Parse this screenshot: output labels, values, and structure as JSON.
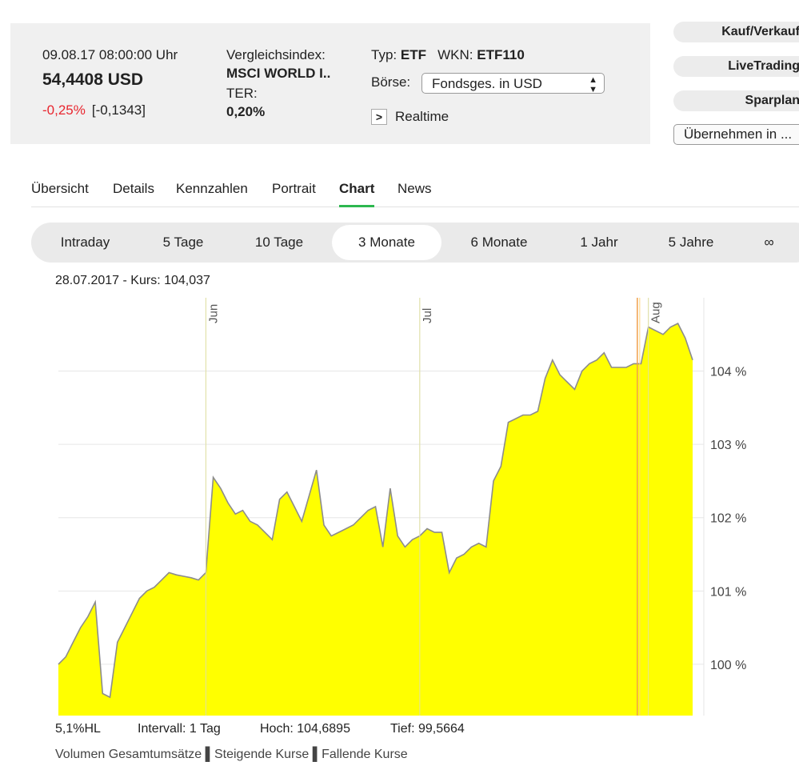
{
  "quote": {
    "datetime": "09.08.17  08:00:00 Uhr",
    "price": "54,4408 USD",
    "change_pct": "-0,25%",
    "change_abs": "[-0,1343]",
    "index_label": "Vergleichsindex:",
    "index_value": "MSCI WORLD I..",
    "ter_label": "TER:",
    "ter_value": "0,20%",
    "typ_label": "Typ:",
    "typ_value": "ETF",
    "wkn_label": "WKN:",
    "wkn_value": "ETF110",
    "boerse_label": "Börse:",
    "boerse_value": "Fondsges. in USD",
    "realtime_label": "Realtime"
  },
  "actions": {
    "kauf": "Kauf/Verkauf",
    "livetrading": "LiveTrading",
    "sparplan": "Sparplan",
    "uebernehmen": "Übernehmen in ..."
  },
  "tabs": [
    {
      "label": "Übersicht"
    },
    {
      "label": "Details"
    },
    {
      "label": "Kennzahlen"
    },
    {
      "label": "Portrait"
    },
    {
      "label": "Chart"
    },
    {
      "label": "News"
    }
  ],
  "periods": [
    {
      "label": "Intraday"
    },
    {
      "label": "5 Tage"
    },
    {
      "label": "10 Tage"
    },
    {
      "label": "3 Monate"
    },
    {
      "label": "6 Monate"
    },
    {
      "label": "1 Jahr"
    },
    {
      "label": "5 Jahre"
    },
    {
      "label": "∞"
    }
  ],
  "chart_caption": "28.07.2017  -  Kurs: 104,037",
  "footer": {
    "hl": "5,1%HL",
    "intervall": "Intervall: 1 Tag",
    "hoch": "Hoch: 104,6895",
    "tief": "Tief: 99,5664"
  },
  "legend_partial": "Volumen  Gesamtumsätze   ▌Steigende Kurse   ▌Fallende Kurse",
  "colors": {
    "fill": "#ffff00",
    "line": "#8c8c8c",
    "grid": "#e6e6e6",
    "negative": "#e8262f",
    "active_tab": "#2db84f",
    "marker": "#f0a04b"
  },
  "chart_data": {
    "type": "area",
    "ylim": [
      99.3,
      105.0
    ],
    "yticks": [
      {
        "v": 100,
        "label": "100 %"
      },
      {
        "v": 101,
        "label": "101 %"
      },
      {
        "v": 102,
        "label": "102 %"
      },
      {
        "v": 103,
        "label": "103 %"
      },
      {
        "v": 104,
        "label": "104 %"
      }
    ],
    "month_labels": [
      {
        "label": "Jun",
        "i": 20
      },
      {
        "label": "Jul",
        "i": 49
      },
      {
        "label": "Aug",
        "i": 80
      }
    ],
    "marker_index": 78.5,
    "values": [
      100.0,
      100.1,
      100.3,
      100.5,
      100.65,
      100.85,
      99.6,
      99.55,
      100.3,
      100.5,
      100.7,
      100.9,
      101.0,
      101.05,
      101.15,
      101.25,
      101.22,
      101.2,
      101.18,
      101.15,
      101.25,
      102.55,
      102.4,
      102.2,
      102.05,
      102.1,
      101.95,
      101.9,
      101.8,
      101.7,
      102.25,
      102.35,
      102.15,
      101.95,
      102.3,
      102.65,
      101.9,
      101.75,
      101.8,
      101.85,
      101.9,
      102.0,
      102.1,
      102.15,
      101.6,
      102.4,
      101.75,
      101.6,
      101.7,
      101.75,
      101.85,
      101.8,
      101.8,
      101.25,
      101.45,
      101.5,
      101.6,
      101.65,
      101.6,
      102.5,
      102.7,
      103.3,
      103.35,
      103.4,
      103.4,
      103.45,
      103.9,
      104.15,
      103.95,
      103.85,
      103.75,
      104.0,
      104.1,
      104.15,
      104.25,
      104.05,
      104.05,
      104.05,
      104.1,
      104.1,
      104.6,
      104.55,
      104.5,
      104.6,
      104.65,
      104.45,
      104.15
    ]
  }
}
